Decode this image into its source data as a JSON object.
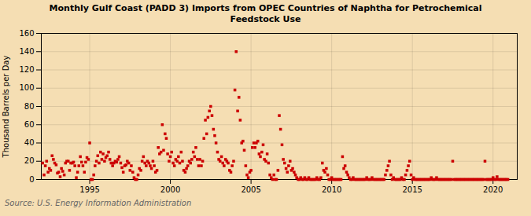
{
  "chart_data": {
    "type": "scatter",
    "title": "Monthly Gulf Coast (PADD 3) Imports from OPEC Countries of Naphtha for Petrochemical\nFeedstock Use",
    "ylabel": "Thousand Barrels per Day",
    "source": "Source: U.S. Energy Information Administration",
    "background_color": "#f5deb3",
    "color": "#cc0000",
    "marker": "square",
    "grid": true,
    "xlim": [
      1992.0,
      2021.5
    ],
    "xticks": [
      1995,
      2000,
      2005,
      2010,
      2015,
      2020
    ],
    "ylim": [
      0,
      160
    ],
    "yticks": [
      0,
      20,
      40,
      60,
      80,
      100,
      120,
      140,
      160
    ],
    "x": [
      1992.08,
      1992.17,
      1992.25,
      1992.33,
      1992.42,
      1992.5,
      1992.58,
      1992.67,
      1992.75,
      1992.83,
      1992.92,
      1993.0,
      1993.08,
      1993.17,
      1993.25,
      1993.33,
      1993.42,
      1993.5,
      1993.58,
      1993.67,
      1993.75,
      1993.83,
      1993.92,
      1994.0,
      1994.08,
      1994.17,
      1994.25,
      1994.33,
      1994.42,
      1994.5,
      1994.58,
      1994.67,
      1994.75,
      1994.83,
      1994.92,
      1995.0,
      1995.08,
      1995.17,
      1995.25,
      1995.33,
      1995.42,
      1995.5,
      1995.58,
      1995.67,
      1995.75,
      1995.83,
      1995.92,
      1996.0,
      1996.08,
      1996.17,
      1996.25,
      1996.33,
      1996.42,
      1996.5,
      1996.58,
      1996.67,
      1996.75,
      1996.83,
      1996.92,
      1997.0,
      1997.08,
      1997.17,
      1997.25,
      1997.33,
      1997.42,
      1997.5,
      1997.58,
      1997.67,
      1997.75,
      1997.83,
      1997.92,
      1998.0,
      1998.08,
      1998.17,
      1998.25,
      1998.33,
      1998.42,
      1998.5,
      1998.58,
      1998.67,
      1998.75,
      1998.83,
      1998.92,
      1999.0,
      1999.08,
      1999.17,
      1999.25,
      1999.33,
      1999.42,
      1999.5,
      1999.58,
      1999.67,
      1999.75,
      1999.83,
      1999.92,
      2000.0,
      2000.08,
      2000.17,
      2000.25,
      2000.33,
      2000.42,
      2000.5,
      2000.58,
      2000.67,
      2000.75,
      2000.83,
      2000.92,
      2001.0,
      2001.08,
      2001.17,
      2001.25,
      2001.33,
      2001.42,
      2001.5,
      2001.58,
      2001.67,
      2001.75,
      2001.83,
      2001.92,
      2002.0,
      2002.08,
      2002.17,
      2002.25,
      2002.33,
      2002.42,
      2002.5,
      2002.58,
      2002.67,
      2002.75,
      2002.83,
      2002.92,
      2003.0,
      2003.08,
      2003.17,
      2003.25,
      2003.33,
      2003.42,
      2003.5,
      2003.58,
      2003.67,
      2003.75,
      2003.83,
      2003.92,
      2004.0,
      2004.08,
      2004.17,
      2004.25,
      2004.33,
      2004.42,
      2004.5,
      2004.58,
      2004.67,
      2004.75,
      2004.83,
      2004.92,
      2005.0,
      2005.08,
      2005.17,
      2005.25,
      2005.33,
      2005.42,
      2005.5,
      2005.58,
      2005.67,
      2005.75,
      2005.83,
      2005.92,
      2006.0,
      2006.08,
      2006.17,
      2006.25,
      2006.33,
      2006.42,
      2006.5,
      2006.58,
      2006.67,
      2006.75,
      2006.83,
      2006.92,
      2007.0,
      2007.08,
      2007.17,
      2007.25,
      2007.33,
      2007.42,
      2007.5,
      2007.58,
      2007.67,
      2007.75,
      2007.83,
      2007.92,
      2008.0,
      2008.08,
      2008.17,
      2008.25,
      2008.33,
      2008.42,
      2008.5,
      2008.58,
      2008.67,
      2008.75,
      2008.83,
      2008.92,
      2009.0,
      2009.08,
      2009.17,
      2009.25,
      2009.33,
      2009.42,
      2009.5,
      2009.58,
      2009.67,
      2009.75,
      2009.83,
      2009.92,
      2010.0,
      2010.08,
      2010.17,
      2010.25,
      2010.33,
      2010.42,
      2010.5,
      2010.58,
      2010.67,
      2010.75,
      2010.83,
      2010.92,
      2011.0,
      2011.08,
      2011.17,
      2011.25,
      2011.33,
      2011.42,
      2011.5,
      2011.58,
      2011.67,
      2011.75,
      2011.83,
      2011.92,
      2012.0,
      2012.08,
      2012.17,
      2012.25,
      2012.33,
      2012.42,
      2012.5,
      2012.58,
      2012.67,
      2012.75,
      2012.83,
      2012.92,
      2013.0,
      2013.08,
      2013.17,
      2013.25,
      2013.33,
      2013.42,
      2013.5,
      2013.58,
      2013.67,
      2013.75,
      2013.83,
      2013.92,
      2014.0,
      2014.08,
      2014.17,
      2014.25,
      2014.33,
      2014.42,
      2014.5,
      2014.58,
      2014.67,
      2014.75,
      2014.83,
      2014.92,
      2015.0,
      2015.08,
      2015.17,
      2015.25,
      2015.33,
      2015.42,
      2015.5,
      2015.58,
      2015.67,
      2015.75,
      2015.83,
      2015.92,
      2016.0,
      2016.08,
      2016.17,
      2016.25,
      2016.33,
      2016.42,
      2016.5,
      2016.58,
      2016.67,
      2016.75,
      2016.83,
      2016.92,
      2017.0,
      2017.08,
      2017.17,
      2017.25,
      2017.33,
      2017.42,
      2017.5,
      2017.58,
      2017.67,
      2017.75,
      2017.83,
      2017.92,
      2018.0,
      2018.08,
      2018.17,
      2018.25,
      2018.33,
      2018.42,
      2018.5,
      2018.58,
      2018.67,
      2018.75,
      2018.83,
      2018.92,
      2019.0,
      2019.08,
      2019.17,
      2019.25,
      2019.33,
      2019.42,
      2019.5,
      2019.58,
      2019.67,
      2019.75,
      2019.83,
      2019.92,
      2020.0,
      2020.08,
      2020.17,
      2020.25,
      2020.33,
      2020.42,
      2020.5,
      2020.58,
      2020.67,
      2020.75,
      2020.83,
      2020.92
    ],
    "values": [
      18,
      5,
      15,
      20,
      8,
      12,
      10,
      26,
      22,
      18,
      16,
      7,
      8,
      3,
      12,
      9,
      5,
      18,
      20,
      20,
      10,
      18,
      18,
      19,
      15,
      2,
      8,
      15,
      25,
      19,
      15,
      8,
      19,
      24,
      22,
      40,
      0,
      0,
      5,
      15,
      20,
      26,
      18,
      30,
      22,
      28,
      20,
      24,
      26,
      30,
      22,
      18,
      15,
      18,
      20,
      19,
      22,
      25,
      18,
      13,
      8,
      15,
      16,
      20,
      18,
      10,
      15,
      8,
      2,
      0,
      0,
      5,
      12,
      10,
      20,
      25,
      18,
      15,
      20,
      18,
      15,
      12,
      20,
      15,
      8,
      10,
      35,
      28,
      30,
      60,
      32,
      50,
      45,
      28,
      20,
      25,
      30,
      18,
      15,
      22,
      20,
      25,
      18,
      30,
      20,
      10,
      8,
      12,
      15,
      20,
      18,
      22,
      30,
      25,
      35,
      22,
      15,
      22,
      15,
      20,
      45,
      65,
      50,
      68,
      75,
      80,
      70,
      55,
      48,
      40,
      30,
      22,
      20,
      25,
      18,
      15,
      22,
      20,
      18,
      10,
      8,
      15,
      20,
      98,
      140,
      75,
      90,
      65,
      40,
      42,
      32,
      15,
      5,
      2,
      8,
      10,
      35,
      40,
      35,
      40,
      42,
      28,
      25,
      30,
      38,
      22,
      20,
      28,
      18,
      5,
      2,
      0,
      5,
      0,
      0,
      10,
      70,
      55,
      38,
      22,
      18,
      12,
      8,
      15,
      20,
      10,
      12,
      8,
      5,
      2,
      0,
      0,
      2,
      0,
      0,
      2,
      0,
      0,
      2,
      0,
      0,
      0,
      0,
      0,
      2,
      0,
      0,
      2,
      18,
      10,
      8,
      12,
      5,
      0,
      0,
      2,
      0,
      0,
      0,
      0,
      0,
      0,
      0,
      25,
      12,
      15,
      8,
      5,
      2,
      0,
      0,
      2,
      0,
      0,
      0,
      0,
      0,
      0,
      0,
      0,
      0,
      2,
      0,
      0,
      0,
      2,
      0,
      0,
      0,
      0,
      0,
      0,
      0,
      0,
      0,
      5,
      10,
      15,
      20,
      5,
      0,
      2,
      0,
      0,
      0,
      0,
      0,
      2,
      0,
      0,
      5,
      10,
      15,
      20,
      5,
      0,
      2,
      0,
      0,
      0,
      0,
      0,
      0,
      0,
      0,
      0,
      0,
      0,
      0,
      2,
      0,
      0,
      0,
      2,
      0,
      0,
      0,
      0,
      0,
      0,
      0,
      0,
      0,
      0,
      0,
      20,
      0,
      0,
      0,
      0,
      0,
      0,
      0,
      0,
      0,
      0,
      0,
      0,
      0,
      0,
      0,
      0,
      0,
      0,
      0,
      0,
      0,
      0,
      0,
      20,
      0,
      0,
      0,
      0,
      0,
      2,
      0,
      0,
      3,
      0,
      0,
      0,
      0,
      0,
      0,
      0,
      0
    ]
  }
}
